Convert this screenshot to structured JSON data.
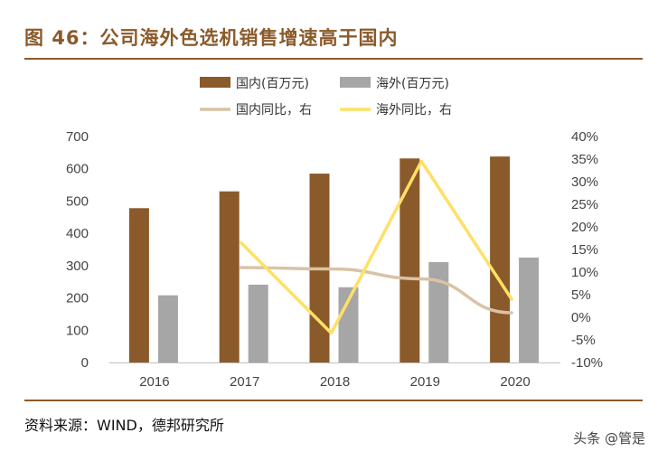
{
  "header": {
    "title": "图 46：公司海外色选机销售增速高于国内"
  },
  "footer": {
    "source": "资料来源：WIND，德邦研究所",
    "watermark": "头条 @管是"
  },
  "colors": {
    "accent": "#8B5A2B",
    "domestic_bar": "#8B5A2B",
    "overseas_bar": "#A6A6A6",
    "domestic_line": "#D9C3A5",
    "overseas_line": "#FFE066"
  },
  "chart_data": {
    "type": "bar",
    "categories": [
      "2016",
      "2017",
      "2018",
      "2019",
      "2020"
    ],
    "series": [
      {
        "name": "国内(百万元)",
        "kind": "bar",
        "axis": "left",
        "values": [
          478,
          530,
          585,
          632,
          638
        ]
      },
      {
        "name": "海外(百万元)",
        "kind": "bar",
        "axis": "left",
        "values": [
          208,
          241,
          233,
          311,
          325
        ]
      },
      {
        "name": "国内同比，右",
        "kind": "line",
        "axis": "right",
        "values": [
          null,
          11,
          10.7,
          8.5,
          1
        ]
      },
      {
        "name": "海外同比，右",
        "kind": "line",
        "axis": "right",
        "values": [
          null,
          16.5,
          -3.5,
          34.5,
          4
        ]
      }
    ],
    "y_left": {
      "range": [
        0,
        700
      ],
      "ticks": [
        "0",
        "100",
        "200",
        "300",
        "400",
        "500",
        "600",
        "700"
      ]
    },
    "y_right": {
      "range": [
        -10,
        40
      ],
      "ticks": [
        "-10%",
        "-5%",
        "0%",
        "5%",
        "10%",
        "15%",
        "20%",
        "25%",
        "30%",
        "35%",
        "40%"
      ]
    },
    "legend_position": "top",
    "grid": false
  }
}
